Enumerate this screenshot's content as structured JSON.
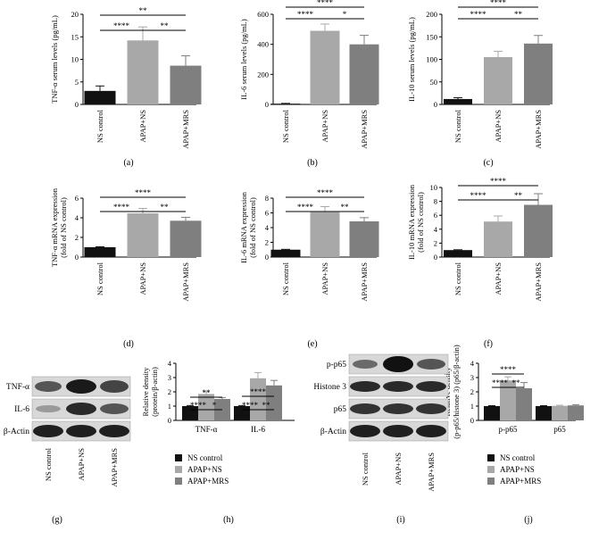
{
  "colors": {
    "ns_control": "#111111",
    "apap_ns": "#a8a8a8",
    "apap_mrs": "#7f7f7f",
    "axis": "#000000"
  },
  "panel_labels": [
    "(a)",
    "(b)",
    "(c)",
    "(d)",
    "(e)",
    "(f)",
    "(g)",
    "(h)",
    "(i)",
    "(j)"
  ],
  "legend": [
    "NS control",
    "APAP+NS",
    "APAP+MRS"
  ],
  "blot_g": {
    "rows": [
      "TNF-α",
      "IL-6",
      "β-Actin"
    ],
    "lanes": [
      "NS control",
      "APAP+NS",
      "APAP+MRS"
    ]
  },
  "blot_i": {
    "rows": [
      "p-p65",
      "Histone 3",
      "p65",
      "β-Actin"
    ],
    "lanes": [
      "NS control",
      "APAP+NS",
      "APAP+MRS"
    ]
  },
  "chart_data": [
    {
      "panel": "(a)",
      "type": "bar",
      "categories": [
        "NS control",
        "APAP+NS",
        "APAP+MRS"
      ],
      "values": [
        3.0,
        14.2,
        8.6
      ],
      "errors": [
        1.1,
        3.0,
        2.2
      ],
      "ylabel": "TNF-α serum levels (pg/mL)",
      "ylim": [
        0,
        20
      ],
      "yticks": [
        0,
        5,
        10,
        15,
        20
      ],
      "significance": [
        {
          "from": 0,
          "to": 1,
          "text": "****"
        },
        {
          "from": 1,
          "to": 2,
          "text": "**"
        },
        {
          "from": 0,
          "to": 2,
          "text": "**"
        }
      ]
    },
    {
      "panel": "(b)",
      "type": "bar",
      "categories": [
        "NS control",
        "APAP+NS",
        "APAP+MRS"
      ],
      "values": [
        5,
        490,
        400
      ],
      "errors": [
        2,
        45,
        60
      ],
      "ylabel": "IL-6 serum levels (pg/mL)",
      "ylim": [
        0,
        600
      ],
      "yticks": [
        0,
        200,
        400,
        600
      ],
      "significance": [
        {
          "from": 0,
          "to": 1,
          "text": "****"
        },
        {
          "from": 1,
          "to": 2,
          "text": "*"
        },
        {
          "from": 0,
          "to": 2,
          "text": "****"
        }
      ]
    },
    {
      "panel": "(c)",
      "type": "bar",
      "categories": [
        "NS control",
        "APAP+NS",
        "APAP+MRS"
      ],
      "values": [
        12,
        105,
        135
      ],
      "errors": [
        3,
        13,
        18
      ],
      "ylabel": "IL-10 serum levels (pg/mL)",
      "ylim": [
        0,
        200
      ],
      "yticks": [
        0,
        50,
        100,
        150,
        200
      ],
      "significance": [
        {
          "from": 0,
          "to": 1,
          "text": "****"
        },
        {
          "from": 1,
          "to": 2,
          "text": "**"
        },
        {
          "from": 0,
          "to": 2,
          "text": "****"
        }
      ]
    },
    {
      "panel": "(d)",
      "type": "bar",
      "categories": [
        "NS control",
        "APAP+NS",
        "APAP+MRS"
      ],
      "values": [
        1.0,
        4.45,
        3.7
      ],
      "errors": [
        0.05,
        0.5,
        0.35
      ],
      "ylabel": "TNF-α mRNA expression (fold of NS control)",
      "ylim": [
        0,
        6
      ],
      "yticks": [
        0,
        2,
        4,
        6
      ],
      "significance": [
        {
          "from": 0,
          "to": 1,
          "text": "****"
        },
        {
          "from": 1,
          "to": 2,
          "text": "**"
        },
        {
          "from": 0,
          "to": 2,
          "text": "****"
        }
      ]
    },
    {
      "panel": "(e)",
      "type": "bar",
      "categories": [
        "NS control",
        "APAP+NS",
        "APAP+MRS"
      ],
      "values": [
        1.0,
        6.1,
        4.85
      ],
      "errors": [
        0.05,
        0.75,
        0.5
      ],
      "ylabel": "IL-6 mRNA expression (fold of NS control)",
      "ylim": [
        0,
        8
      ],
      "yticks": [
        0,
        2,
        4,
        6,
        8
      ],
      "significance": [
        {
          "from": 0,
          "to": 1,
          "text": "****"
        },
        {
          "from": 1,
          "to": 2,
          "text": "**"
        },
        {
          "from": 0,
          "to": 2,
          "text": "****"
        }
      ]
    },
    {
      "panel": "(f)",
      "type": "bar",
      "categories": [
        "NS control",
        "APAP+NS",
        "APAP+MRS"
      ],
      "values": [
        1.0,
        5.1,
        7.5
      ],
      "errors": [
        0.05,
        0.8,
        1.6
      ],
      "ylabel": "IL-10 mRNA expression (fold of NS control)",
      "ylim": [
        0,
        10
      ],
      "yticks": [
        0,
        2,
        4,
        6,
        8,
        10
      ],
      "significance": [
        {
          "from": 0,
          "to": 1,
          "text": "****"
        },
        {
          "from": 1,
          "to": 2,
          "text": "**"
        },
        {
          "from": 0,
          "to": 2,
          "text": "****"
        }
      ]
    },
    {
      "panel": "(h)",
      "type": "bar",
      "categories": [
        "TNF-α",
        "IL-6"
      ],
      "series": [
        {
          "name": "NS control",
          "values": [
            1.0,
            1.0
          ],
          "errors": [
            0.04,
            0.04
          ]
        },
        {
          "name": "APAP+NS",
          "values": [
            1.85,
            2.95
          ],
          "errors": [
            0.15,
            0.4
          ]
        },
        {
          "name": "APAP+MRS",
          "values": [
            1.5,
            2.45
          ],
          "errors": [
            0.1,
            0.35
          ]
        }
      ],
      "ylabel": "Relative density (protein/β-actin)",
      "ylim": [
        0,
        4
      ],
      "yticks": [
        0,
        1,
        2,
        3,
        4
      ],
      "significance": [
        {
          "group": 0,
          "from": 0,
          "to": 1,
          "text": "****"
        },
        {
          "group": 0,
          "from": 1,
          "to": 2,
          "text": "*"
        },
        {
          "group": 0,
          "from": 0,
          "to": 2,
          "text": "**"
        },
        {
          "group": 1,
          "from": 0,
          "to": 1,
          "text": "****"
        },
        {
          "group": 1,
          "from": 1,
          "to": 2,
          "text": "**"
        },
        {
          "group": 1,
          "from": 0,
          "to": 2,
          "text": "****"
        }
      ]
    },
    {
      "panel": "(j)",
      "type": "bar",
      "categories": [
        "p-p65",
        "p65"
      ],
      "series": [
        {
          "name": "NS control",
          "values": [
            1.0,
            1.0
          ],
          "errors": [
            0.03,
            0.03
          ]
        },
        {
          "name": "APAP+NS",
          "values": [
            2.8,
            1.02
          ],
          "errors": [
            0.25,
            0.04
          ]
        },
        {
          "name": "APAP+MRS",
          "values": [
            2.25,
            1.05
          ],
          "errors": [
            0.4,
            0.05
          ]
        }
      ],
      "ylabel": "Relative density (p-p65/histone 3) (p65/β-actin)",
      "ylim": [
        0,
        4
      ],
      "yticks": [
        0,
        1,
        2,
        3,
        4
      ],
      "significance": [
        {
          "group": 0,
          "from": 0,
          "to": 1,
          "text": "****"
        },
        {
          "group": 0,
          "from": 1,
          "to": 2,
          "text": "**"
        },
        {
          "group": 0,
          "from": 0,
          "to": 2,
          "text": "****"
        }
      ]
    }
  ]
}
